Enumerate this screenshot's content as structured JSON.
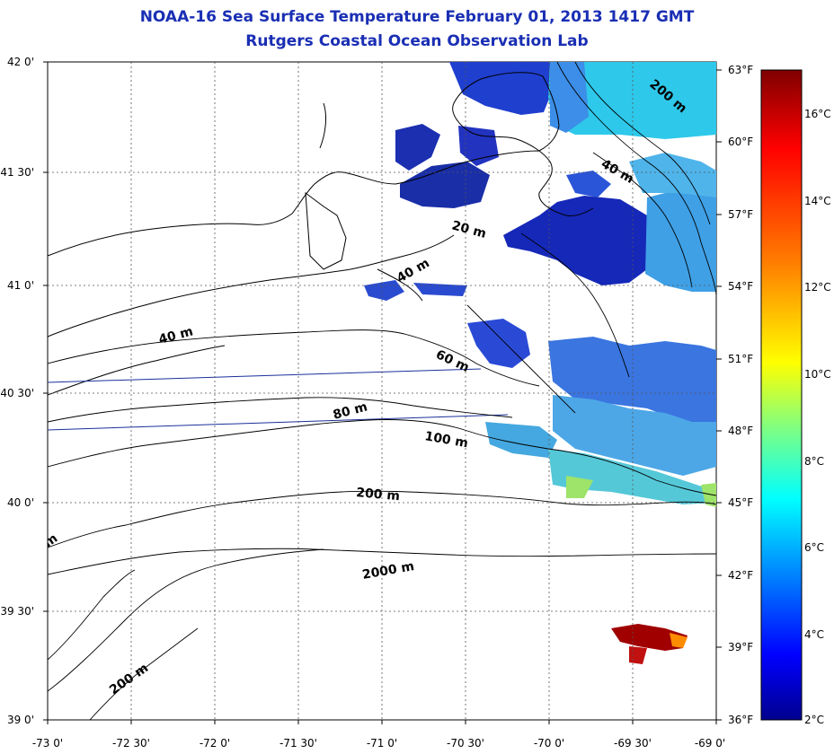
{
  "title": "NOAA-16 Sea Surface Temperature February 01, 2013 1417 GMT",
  "subtitle": "Rutgers Coastal Ocean Observation Lab",
  "lat_labels": [
    "42 0'",
    "41 30'",
    "41 0'",
    "40 30'",
    "40 0'",
    "39 30'",
    "39 0'"
  ],
  "lon_labels": [
    "-73 0'",
    "-72 30'",
    "-72 0'",
    "-71 30'",
    "-71 0'",
    "-70 30'",
    "-70 0'",
    "-69 30'",
    "-69 0'"
  ],
  "fahrenheit_labels": [
    "63°F",
    "60°F",
    "57°F",
    "54°F",
    "51°F",
    "48°F",
    "45°F",
    "42°F",
    "39°F",
    "36°F"
  ],
  "celsius_labels": [
    "16°C",
    "14°C",
    "12°C",
    "10°C",
    "8°C",
    "6°C",
    "4°C",
    "2°C"
  ],
  "contour_labels": [
    "200 m",
    "40 m",
    "20 m",
    "40 m",
    "40 m",
    "60 m",
    "80 m",
    "100 m",
    "200 m",
    "2000 m",
    "200 m",
    "m"
  ],
  "colors": {
    "title": "#1a2fb4",
    "shelf_line": "#1a2f9a"
  },
  "colorbar_colors": [
    "#7f0000",
    "#ff0000",
    "#ff8000",
    "#ffff00",
    "#80ff80",
    "#00ffff",
    "#0080ff",
    "#0000ff",
    "#00008f"
  ]
}
